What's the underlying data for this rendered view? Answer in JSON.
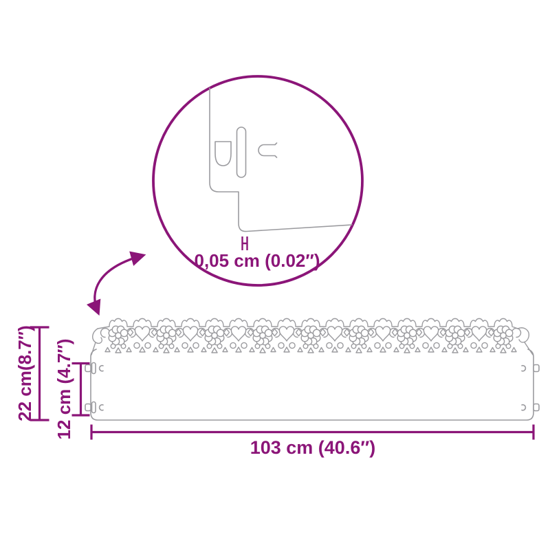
{
  "diagram": {
    "colors": {
      "accent": "#8B1578",
      "outline": "#9B9B9F",
      "background": "#FFFFFF"
    },
    "detail_view": {
      "thickness_label": "0,05 cm (0.02″)"
    },
    "dimensions": {
      "total_height_label": "22 cm(8.7″)",
      "panel_height_label": "12 cm (4.7″)",
      "length_label": "103 cm (40.6″)"
    }
  }
}
